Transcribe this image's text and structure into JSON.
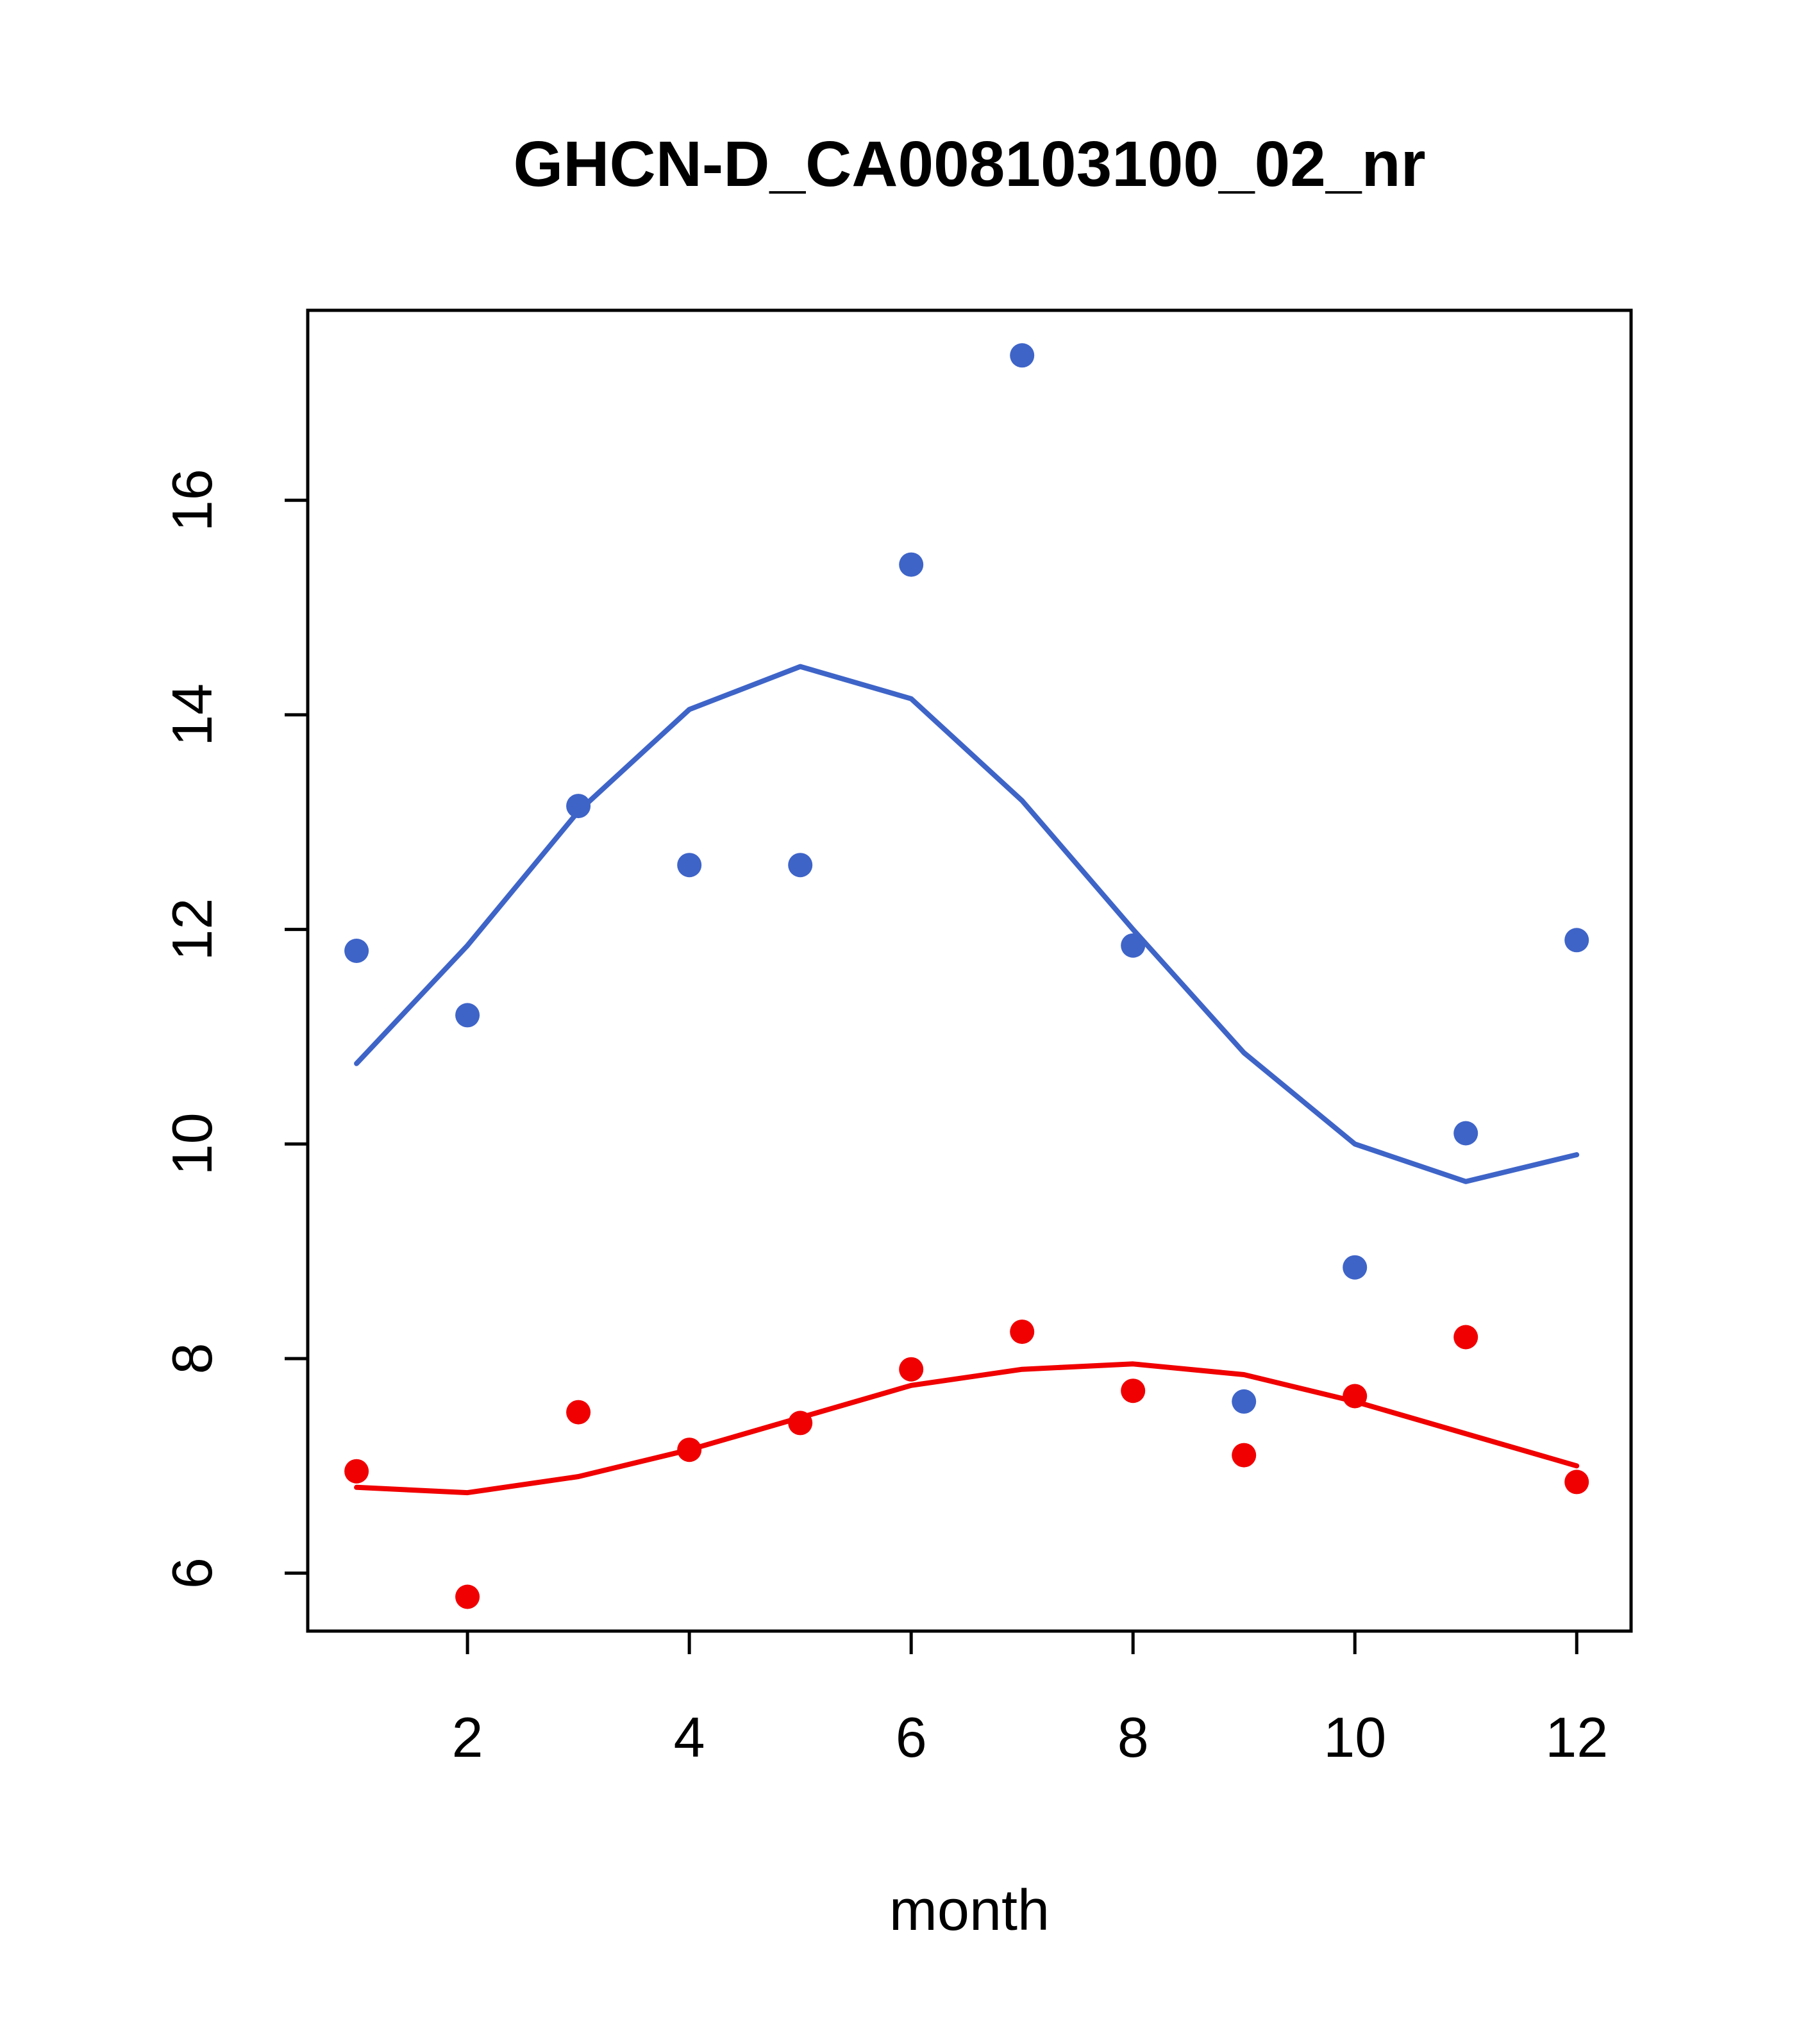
{
  "title": "GHCN-D_CA008103100_02_nr",
  "chart_data": {
    "type": "scatter",
    "title": "GHCN-D_CA008103100_02_nr",
    "xlabel": "month",
    "ylabel": "",
    "xlim": [
      0.56,
      12.49
    ],
    "ylim": [
      5.46,
      17.77
    ],
    "x_ticks": [
      2,
      4,
      6,
      8,
      10,
      12
    ],
    "y_ticks": [
      6,
      8,
      10,
      12,
      14,
      16
    ],
    "grid": false,
    "legend": "none",
    "colors": {
      "blue": "#3E64C8",
      "red": "#F00000"
    },
    "series": [
      {
        "name": "blue-points",
        "type": "points",
        "color": "#3E64C8",
        "x": [
          1,
          2,
          3,
          4,
          5,
          6,
          7,
          8,
          9,
          10,
          11,
          12
        ],
        "y": [
          11.8,
          11.2,
          13.15,
          12.6,
          12.6,
          15.4,
          17.35,
          11.85,
          7.6,
          8.85,
          10.1,
          11.9
        ]
      },
      {
        "name": "blue-smooth-line",
        "type": "line",
        "color": "#3E64C8",
        "x": [
          1,
          2,
          3,
          4,
          5,
          6,
          7,
          8,
          9,
          10,
          11,
          12
        ],
        "y": [
          10.75,
          11.85,
          13.1,
          14.05,
          14.45,
          14.15,
          13.2,
          12.0,
          10.85,
          10.0,
          9.65,
          9.9
        ]
      },
      {
        "name": "red-points",
        "type": "points",
        "color": "#F00000",
        "x": [
          1,
          2,
          3,
          4,
          5,
          6,
          7,
          8,
          9,
          10,
          11,
          12
        ],
        "y": [
          6.95,
          5.78,
          7.5,
          7.15,
          7.4,
          7.9,
          8.25,
          7.7,
          7.1,
          7.65,
          8.2,
          6.85
        ]
      },
      {
        "name": "red-smooth-line",
        "type": "line",
        "color": "#F00000",
        "x": [
          1,
          2,
          3,
          4,
          5,
          6,
          7,
          8,
          9,
          10,
          11,
          12
        ],
        "y": [
          6.8,
          6.75,
          6.9,
          7.15,
          7.45,
          7.75,
          7.9,
          7.95,
          7.85,
          7.6,
          7.3,
          7.0
        ]
      }
    ]
  }
}
